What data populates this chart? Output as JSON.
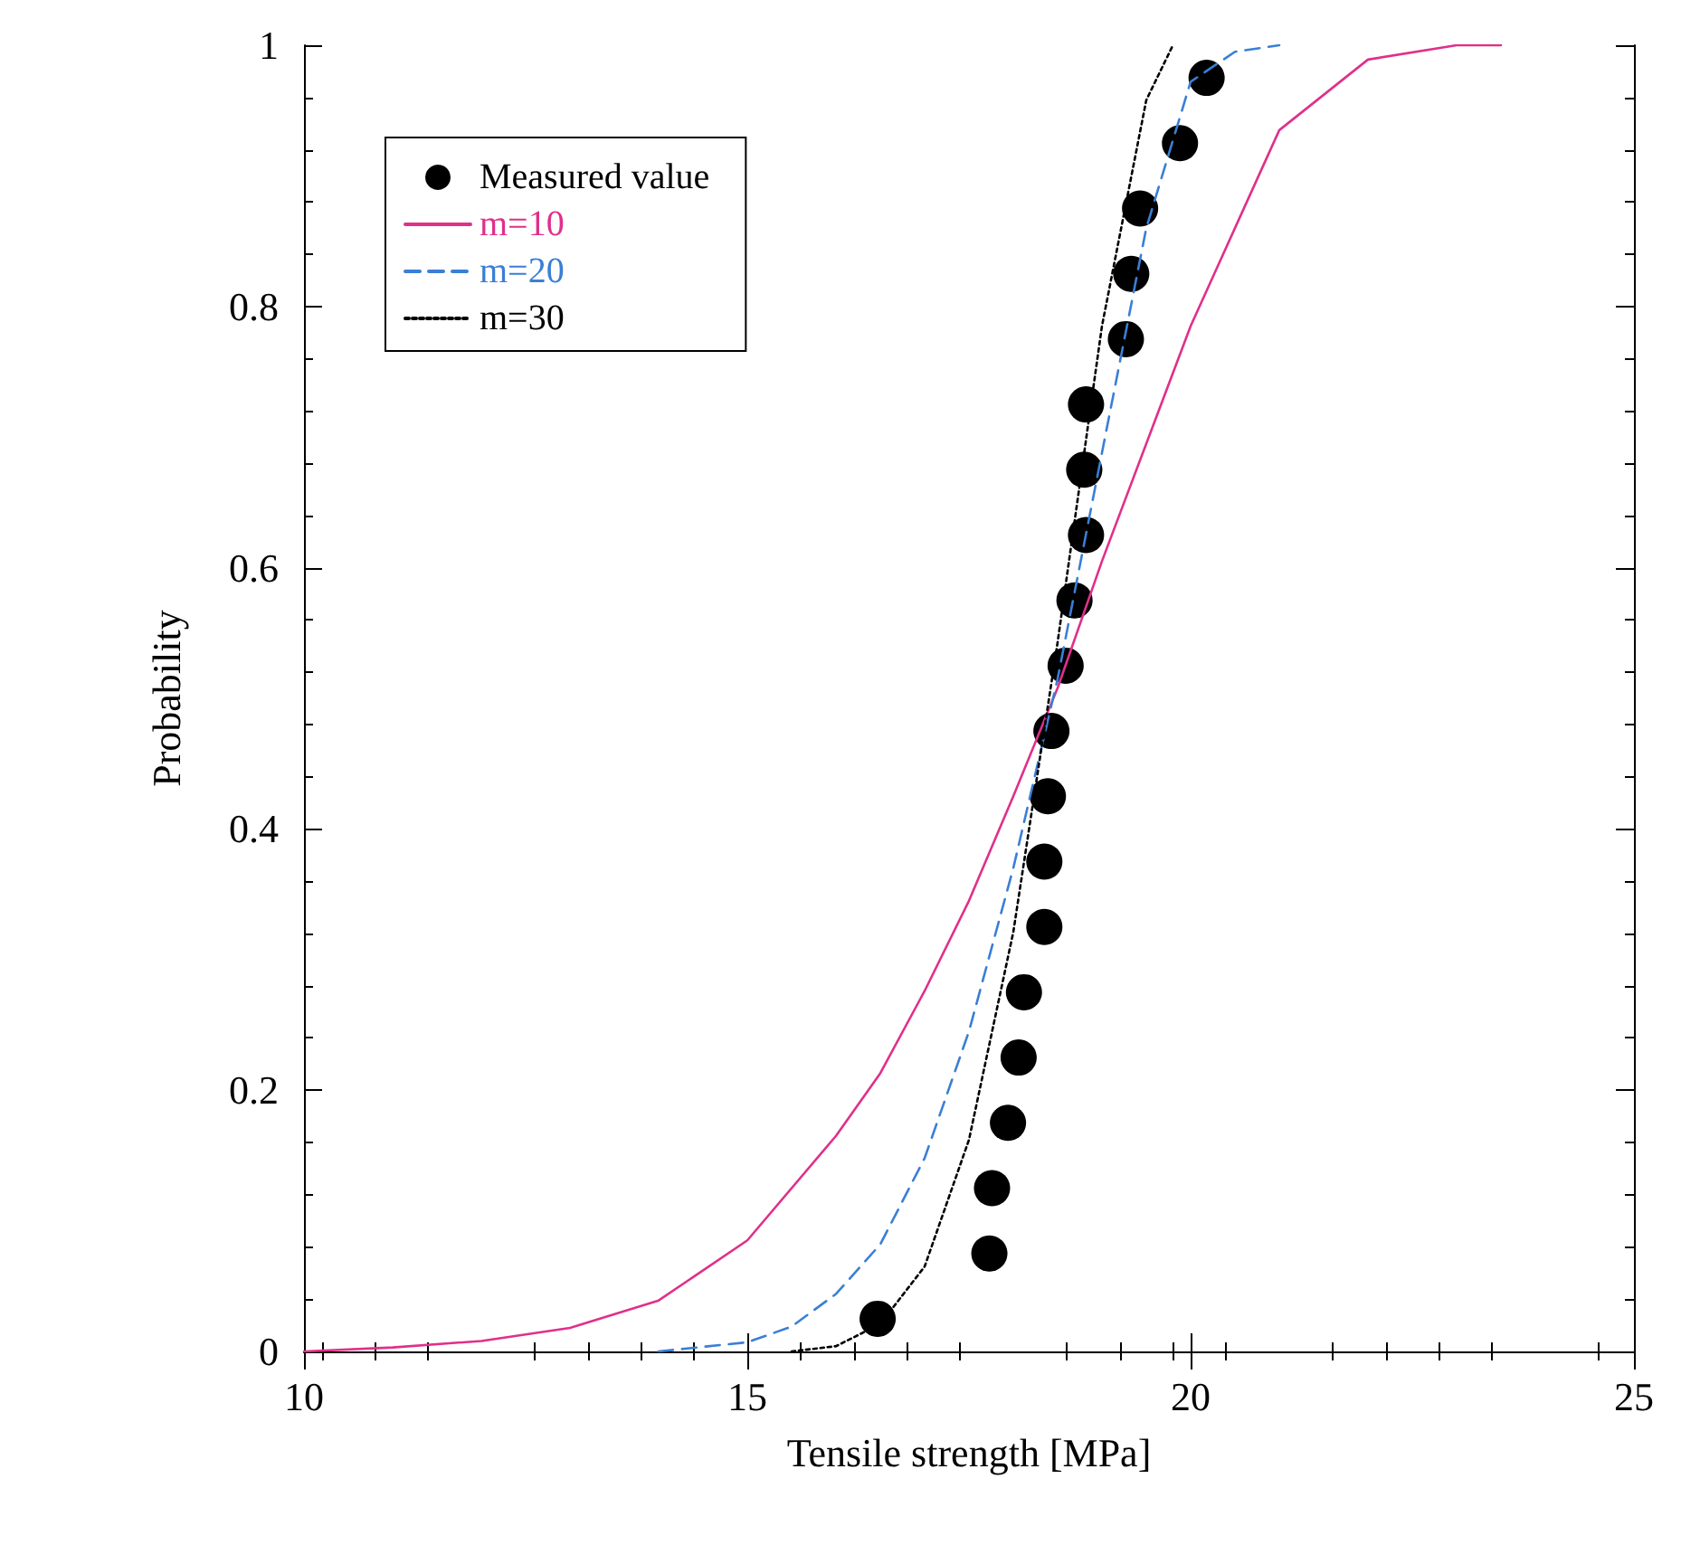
{
  "chart_data": {
    "type": "line",
    "xlabel": "Tensile strength [MPa]",
    "ylabel": "Probability",
    "xlim": [
      10,
      25
    ],
    "xticks": [
      10,
      15,
      20,
      25
    ],
    "ylim": [
      0,
      1
    ],
    "yticks": [
      0,
      0.2,
      0.4,
      0.6,
      0.8,
      1
    ],
    "grid": false,
    "legend": "top left",
    "series": [
      {
        "name": "Measured value",
        "type": "scatter",
        "marker": "circle",
        "color": "#000000",
        "x": [
          16.47,
          17.73,
          17.76,
          17.94,
          18.06,
          18.12,
          18.35,
          18.35,
          18.39,
          18.43,
          18.59,
          18.69,
          18.82,
          18.8,
          18.82,
          19.27,
          19.33,
          19.43,
          19.88,
          20.18
        ],
        "values": [
          0.025,
          0.075,
          0.125,
          0.175,
          0.225,
          0.275,
          0.325,
          0.375,
          0.425,
          0.475,
          0.525,
          0.575,
          0.625,
          0.675,
          0.725,
          0.775,
          0.825,
          0.875,
          0.925,
          0.975
        ]
      },
      {
        "name": "m=10",
        "line_style": "solid",
        "color": "#e0308a",
        "x": [
          10,
          11,
          12,
          13,
          14,
          15,
          16,
          16.5,
          17,
          17.5,
          18,
          18.5,
          19,
          19.5,
          20,
          20.5,
          21,
          22,
          23,
          23.5
        ],
        "values": [
          0,
          0.003,
          0.008,
          0.018,
          0.039,
          0.085,
          0.165,
          0.213,
          0.276,
          0.345,
          0.425,
          0.508,
          0.605,
          0.695,
          0.785,
          0.86,
          0.935,
          0.989,
          1,
          1
        ]
      },
      {
        "name": "m=20",
        "line_style": "dashed",
        "color": "#3a7fd5",
        "x": [
          14,
          15,
          15.5,
          16,
          16.5,
          17,
          17.5,
          18,
          18.5,
          19,
          19.5,
          20,
          20.5,
          21
        ],
        "values": [
          0,
          0.007,
          0.019,
          0.044,
          0.082,
          0.148,
          0.245,
          0.37,
          0.515,
          0.688,
          0.86,
          0.972,
          0.995,
          1
        ]
      },
      {
        "name": "m=30",
        "line_style": "dotted",
        "color": "#000000",
        "x": [
          15.5,
          16,
          16.5,
          17,
          17.5,
          18,
          18.5,
          19,
          19.5,
          19.8
        ],
        "values": [
          0,
          0.004,
          0.021,
          0.065,
          0.162,
          0.321,
          0.543,
          0.785,
          0.958,
          1
        ]
      }
    ]
  }
}
